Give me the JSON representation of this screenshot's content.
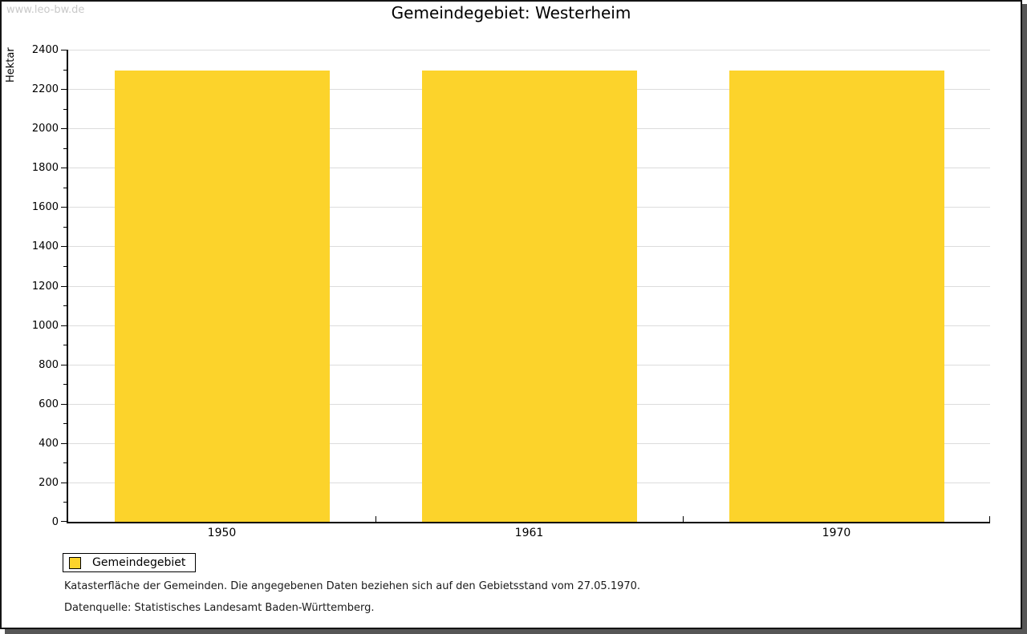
{
  "window": {
    "watermark": "www.leo-bw.de"
  },
  "chart_data": {
    "type": "bar",
    "title": "Gemeindegebiet: Westerheim",
    "xlabel": "",
    "ylabel": "Hektar",
    "categories": [
      "1950",
      "1961",
      "1970"
    ],
    "series": [
      {
        "name": "Gemeindegebiet",
        "color": "#FCD32B",
        "values": [
          2293,
          2293,
          2293
        ]
      }
    ],
    "ylim": [
      0,
      2400
    ],
    "ytick_step": 200,
    "yminor_step": 100,
    "grid": true,
    "legend_position": "bottom-left"
  },
  "legend": {
    "items": [
      {
        "label": "Gemeindegebiet",
        "color": "#FCD32B"
      }
    ]
  },
  "footnotes": {
    "line1": "Katasterfläche der Gemeinden. Die angegebenen Daten beziehen sich auf den Gebietsstand vom 27.05.1970.",
    "line2": "Datenquelle: Statistisches Landesamt Baden-Württemberg."
  },
  "colors": {
    "bar": "#FCD32B",
    "grid": "#DCDCDC",
    "axis": "#000000",
    "watermark": "#C9C9C9",
    "frame_shadow": "#565656"
  }
}
